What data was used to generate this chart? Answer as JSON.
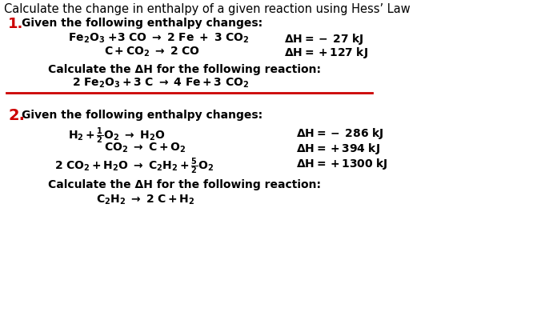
{
  "title": "Calculate the change in enthalpy of a given reaction using Hess’ Law",
  "background_color": "#ffffff",
  "red_color": "#cc0000",
  "black_color": "#000000",
  "section1_number": "1.",
  "section1_header": "Given the following enthalpy changes:",
  "section1_calc": "Calculate the ΔH for the following reaction:",
  "section2_number": "2.",
  "section2_header": "Given the following enthalpy changes:",
  "section2_calc": "Calculate the ΔH for the following reaction:"
}
